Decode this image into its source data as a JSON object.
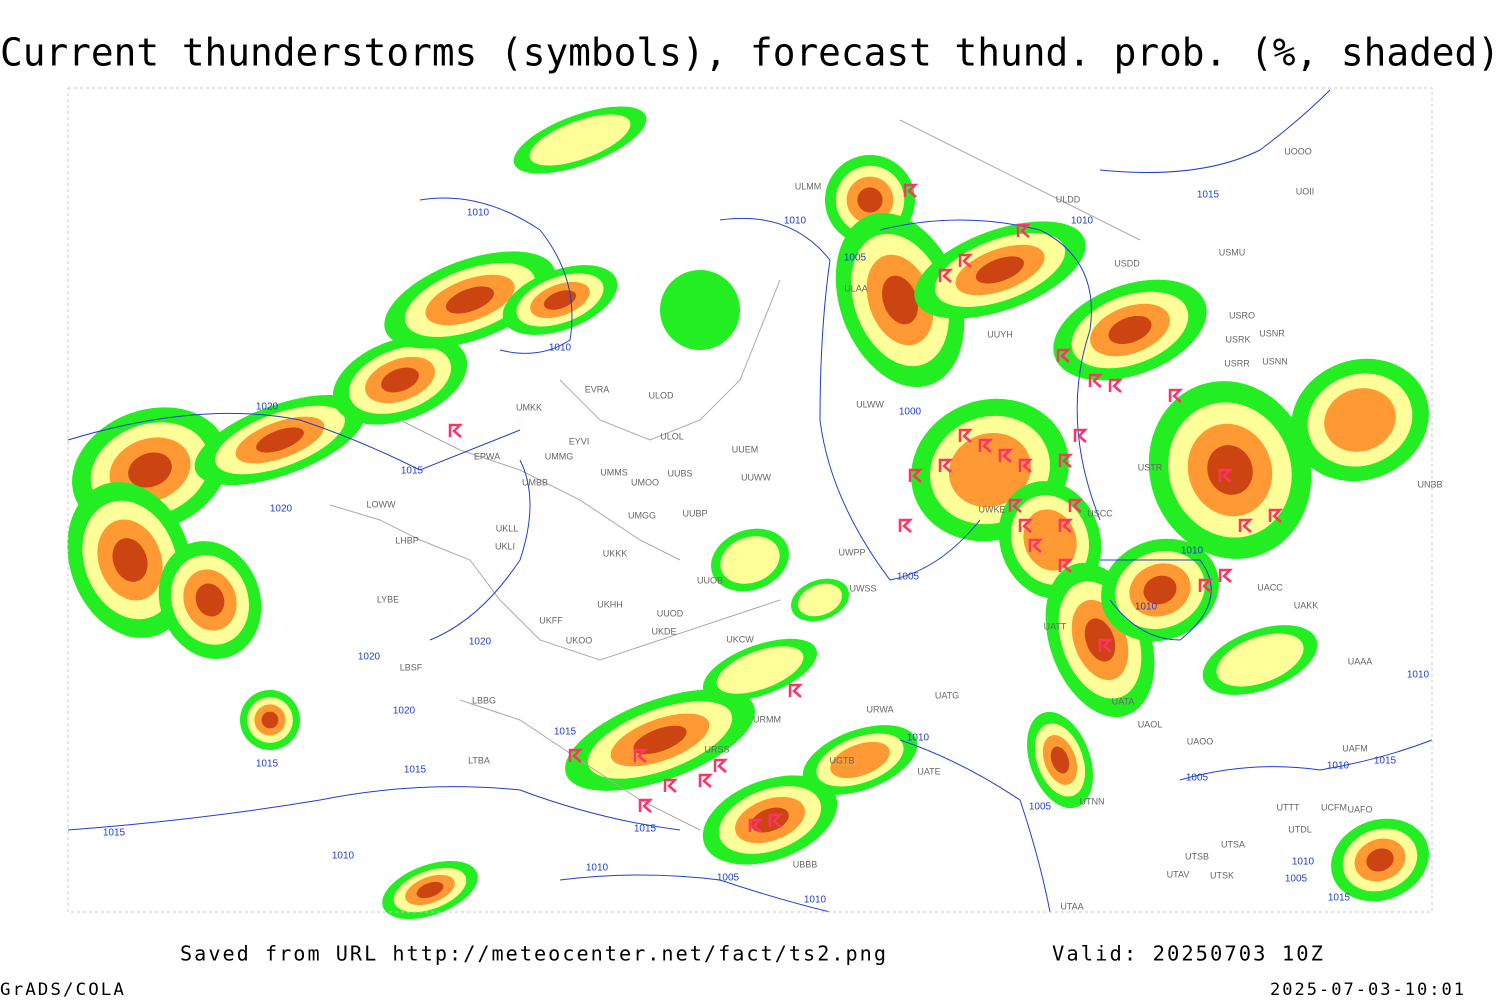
{
  "header": {
    "title": "Current thunderstorms (symbols), forecast thund. prob. (%, shaded)"
  },
  "footer": {
    "source": "Saved from URL http://meteocenter.net/fact/ts2.png",
    "valid": "Valid: 20250703 10Z",
    "software": "GrADS/COLA",
    "timestamp": "2025-07-03-10:01"
  },
  "map": {
    "isobar_labels": [
      "1010",
      "1010",
      "1005",
      "1010",
      "1015",
      "1010",
      "1020",
      "1015",
      "1020",
      "1000",
      "1005",
      "1010",
      "1010",
      "1020",
      "1020",
      "1020",
      "1015",
      "1015",
      "1015",
      "1015",
      "1015",
      "1010",
      "1010",
      "1005",
      "1010",
      "1010",
      "1005",
      "1005",
      "1010",
      "1015",
      "1010",
      "1010",
      "1005",
      "1015"
    ],
    "station_labels": [
      "ULMM",
      "ULDD",
      "UOOO",
      "UOII",
      "USMU",
      "USDD",
      "ULAA",
      "USRO",
      "USRK",
      "USNR",
      "USRR",
      "USNN",
      "UUYH",
      "EVRA",
      "ULOD",
      "UMKK",
      "ULOL",
      "EYVI",
      "UUEM",
      "EPWA",
      "UMMG",
      "UMMS",
      "UMOO",
      "UUBS",
      "UUWW",
      "UMBB",
      "USTR",
      "UNBB",
      "UKLL",
      "UKLI",
      "UMGG",
      "UUBP",
      "ULWW",
      "UKKK",
      "UUOB",
      "UWPP",
      "UWKE",
      "USCC",
      "UWSS",
      "UATT",
      "UKHH",
      "UUOD",
      "UKFF",
      "UKDE",
      "UKOO",
      "UKCW",
      "LOWW",
      "LHBP",
      "LYBE",
      "LBSF",
      "LBBG",
      "LTBA",
      "UATG",
      "URWA",
      "URMM",
      "URSS",
      "UATA",
      "UAOL",
      "UAOO",
      "UGTB",
      "UBBB",
      "UTNN",
      "UAFM",
      "UATE",
      "UTSA",
      "UTSB",
      "UTAV",
      "UTSK",
      "UTAA",
      "UAAA",
      "UAKK",
      "UACC",
      "UTTT",
      "UTDL",
      "UAFO",
      "UCFM"
    ]
  }
}
